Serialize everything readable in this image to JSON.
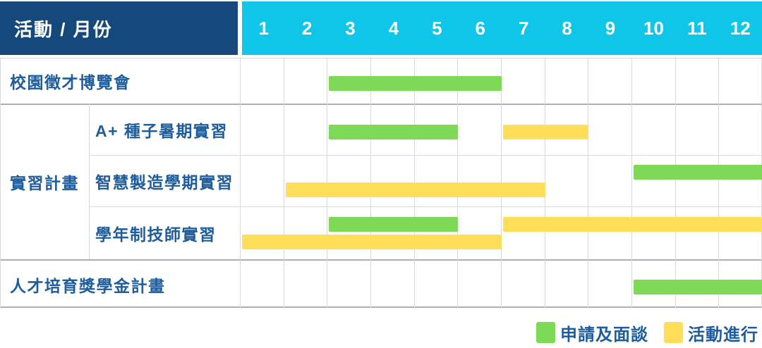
{
  "header": {
    "title": "活動 / 月份",
    "months": [
      "1",
      "2",
      "3",
      "4",
      "5",
      "6",
      "7",
      "8",
      "9",
      "10",
      "11",
      "12"
    ]
  },
  "legend": [
    {
      "key": "apply",
      "label": "申請及面談",
      "color": "#7ED957"
    },
    {
      "key": "active",
      "label": "活動進行",
      "color": "#FFDE59"
    }
  ],
  "colors": {
    "header_bg": "#15497B",
    "month_header_bg": "#0FC5E8",
    "header_text": "#FFFFFF",
    "label_text": "#1E5C9C",
    "grid_line": "#D9D9D9",
    "divider_strong": "#AEAEAE",
    "background": "#FFFFFF"
  },
  "chart_data": {
    "type": "gantt",
    "title": "活動 / 月份",
    "x_axis": {
      "label": "月份",
      "ticks": [
        "1",
        "2",
        "3",
        "4",
        "5",
        "6",
        "7",
        "8",
        "9",
        "10",
        "11",
        "12"
      ],
      "range": [
        1,
        12
      ],
      "unit": "month"
    },
    "legend_entries": [
      "申請及面談",
      "活動進行"
    ],
    "rows": [
      {
        "group": "",
        "label": "校園徵才博覽會",
        "bars": [
          {
            "series": "申請及面談",
            "start_month": 3,
            "end_month": 6,
            "lane": "single"
          }
        ]
      },
      {
        "group": "實習計畫",
        "label": "A+ 種子暑期實習",
        "bars": [
          {
            "series": "申請及面談",
            "start_month": 3,
            "end_month": 5,
            "lane": "single"
          },
          {
            "series": "活動進行",
            "start_month": 7,
            "end_month": 8,
            "lane": "single"
          }
        ]
      },
      {
        "group": "實習計畫",
        "label": "智慧製造學期實習",
        "bars": [
          {
            "series": "申請及面談",
            "start_month": 10,
            "end_month": 12,
            "lane": "upper"
          },
          {
            "series": "活動進行",
            "start_month": 2,
            "end_month": 7,
            "lane": "lower"
          }
        ]
      },
      {
        "group": "實習計畫",
        "label": "學年制技師實習",
        "bars": [
          {
            "series": "申請及面談",
            "start_month": 3,
            "end_month": 5,
            "lane": "upper"
          },
          {
            "series": "活動進行",
            "start_month": 7,
            "end_month": 12,
            "lane": "upper"
          },
          {
            "series": "活動進行",
            "start_month": 1,
            "end_month": 6,
            "lane": "lower"
          }
        ]
      },
      {
        "group": "",
        "label": "人才培育獎學金計畫",
        "bars": [
          {
            "series": "申請及面談",
            "start_month": 10,
            "end_month": 12,
            "lane": "single"
          }
        ]
      }
    ]
  }
}
